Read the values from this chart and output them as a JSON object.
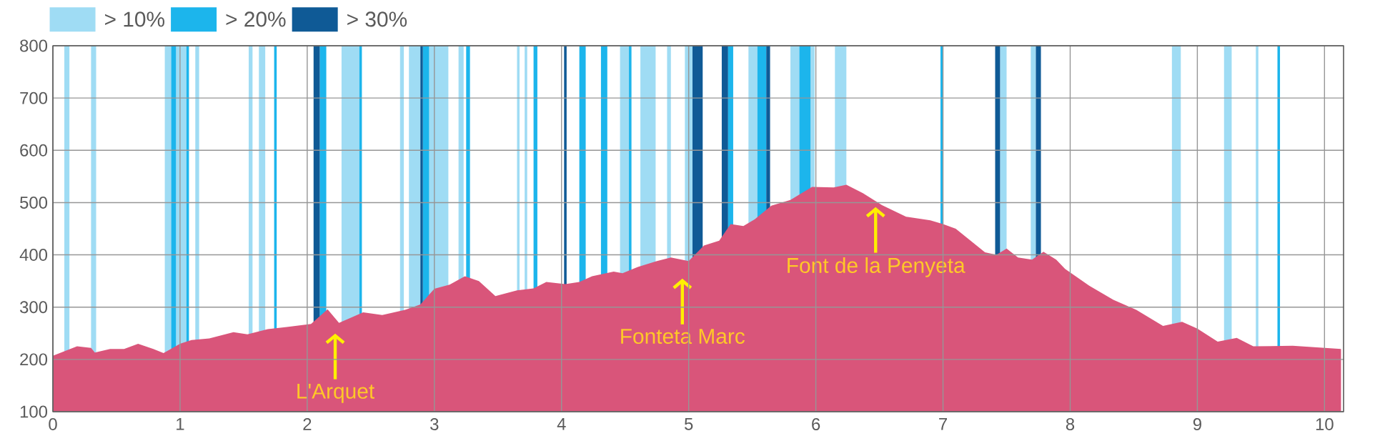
{
  "chart_data": {
    "type": "area",
    "xlim": [
      0,
      10.15
    ],
    "ylim": [
      100,
      800
    ],
    "xticks": [
      0,
      1,
      2,
      3,
      4,
      5,
      6,
      7,
      8,
      9,
      10
    ],
    "yticks": [
      100,
      200,
      300,
      400,
      500,
      600,
      700,
      800
    ],
    "grid": true,
    "legend": "top left",
    "x": [
      0,
      0.19,
      0.3,
      0.33,
      0.45,
      0.56,
      0.67,
      0.79,
      0.87,
      1.0,
      1.09,
      1.23,
      1.42,
      1.53,
      1.69,
      1.84,
      2.03,
      2.16,
      2.25,
      2.44,
      2.59,
      2.77,
      2.89,
      3.0,
      3.12,
      3.24,
      3.35,
      3.48,
      3.65,
      3.78,
      3.88,
      4.03,
      4.14,
      4.24,
      4.41,
      4.48,
      4.6,
      4.75,
      4.86,
      5.0,
      5.12,
      5.24,
      5.33,
      5.43,
      5.52,
      5.65,
      5.8,
      5.97,
      6.14,
      6.24,
      6.37,
      6.52,
      6.71,
      6.9,
      7.0,
      7.1,
      7.33,
      7.42,
      7.5,
      7.59,
      7.7,
      7.79,
      7.89,
      7.96,
      8.15,
      8.34,
      8.52,
      8.73,
      8.88,
      9.0,
      9.16,
      9.31,
      9.44,
      9.75,
      10.13
    ],
    "series": [
      {
        "color": "#d9557a",
        "values": [
          207,
          225,
          222,
          213,
          220,
          220,
          230,
          220,
          212,
          230,
          237,
          240,
          252,
          248,
          258,
          262,
          268,
          296,
          270,
          290,
          285,
          295,
          305,
          335,
          343,
          359,
          350,
          321,
          332,
          336,
          348,
          344,
          348,
          359,
          368,
          365,
          377,
          388,
          395,
          388,
          418,
          427,
          459,
          455,
          468,
          494,
          505,
          530,
          529,
          534,
          518,
          495,
          473,
          466,
          459,
          450,
          405,
          400,
          412,
          395,
          391,
          406,
          391,
          373,
          341,
          314,
          295,
          264,
          272,
          259,
          234,
          241,
          225,
          226,
          220
        ]
      }
    ],
    "bands": [
      {
        "axis": "x",
        "from": 0.09,
        "to": 0.13,
        "color": "#9fdcf4",
        "label": "> 10%"
      },
      {
        "axis": "x",
        "from": 0.3,
        "to": 0.34,
        "color": "#9fdcf4"
      },
      {
        "axis": "x",
        "from": 0.88,
        "to": 0.93,
        "color": "#9fdcf4"
      },
      {
        "axis": "x",
        "from": 0.93,
        "to": 0.97,
        "color": "#1cb5ec",
        "label": "> 20%"
      },
      {
        "axis": "x",
        "from": 0.97,
        "to": 1.05,
        "color": "#9fdcf4"
      },
      {
        "axis": "x",
        "from": 1.05,
        "to": 1.07,
        "color": "#1cb5ec"
      },
      {
        "axis": "x",
        "from": 1.12,
        "to": 1.15,
        "color": "#9fdcf4"
      },
      {
        "axis": "x",
        "from": 1.54,
        "to": 1.57,
        "color": "#9fdcf4"
      },
      {
        "axis": "x",
        "from": 1.62,
        "to": 1.67,
        "color": "#9fdcf4"
      },
      {
        "axis": "x",
        "from": 1.74,
        "to": 1.76,
        "color": "#1cb5ec"
      },
      {
        "axis": "x",
        "from": 2.05,
        "to": 2.1,
        "color": "#0f5a96",
        "label": "> 30%"
      },
      {
        "axis": "x",
        "from": 2.1,
        "to": 2.15,
        "color": "#1cb5ec"
      },
      {
        "axis": "x",
        "from": 2.27,
        "to": 2.41,
        "color": "#9fdcf4"
      },
      {
        "axis": "x",
        "from": 2.41,
        "to": 2.43,
        "color": "#1cb5ec"
      },
      {
        "axis": "x",
        "from": 2.73,
        "to": 2.76,
        "color": "#9fdcf4"
      },
      {
        "axis": "x",
        "from": 2.8,
        "to": 2.89,
        "color": "#9fdcf4"
      },
      {
        "axis": "x",
        "from": 2.89,
        "to": 2.91,
        "color": "#0f5a96"
      },
      {
        "axis": "x",
        "from": 2.91,
        "to": 2.96,
        "color": "#1cb5ec"
      },
      {
        "axis": "x",
        "from": 2.96,
        "to": 3.11,
        "color": "#9fdcf4"
      },
      {
        "axis": "x",
        "from": 3.19,
        "to": 3.23,
        "color": "#9fdcf4"
      },
      {
        "axis": "x",
        "from": 3.25,
        "to": 3.28,
        "color": "#1cb5ec"
      },
      {
        "axis": "x",
        "from": 3.65,
        "to": 3.67,
        "color": "#9fdcf4"
      },
      {
        "axis": "x",
        "from": 3.71,
        "to": 3.73,
        "color": "#9fdcf4"
      },
      {
        "axis": "x",
        "from": 3.78,
        "to": 3.81,
        "color": "#1cb5ec"
      },
      {
        "axis": "x",
        "from": 4.02,
        "to": 4.04,
        "color": "#0f5a96"
      },
      {
        "axis": "x",
        "from": 4.14,
        "to": 4.19,
        "color": "#1cb5ec"
      },
      {
        "axis": "x",
        "from": 4.31,
        "to": 4.36,
        "color": "#1cb5ec"
      },
      {
        "axis": "x",
        "from": 4.46,
        "to": 4.53,
        "color": "#9fdcf4"
      },
      {
        "axis": "x",
        "from": 4.53,
        "to": 4.55,
        "color": "#1cb5ec"
      },
      {
        "axis": "x",
        "from": 4.62,
        "to": 4.74,
        "color": "#9fdcf4"
      },
      {
        "axis": "x",
        "from": 4.83,
        "to": 4.86,
        "color": "#9fdcf4"
      },
      {
        "axis": "x",
        "from": 4.97,
        "to": 5.03,
        "color": "#9fdcf4"
      },
      {
        "axis": "x",
        "from": 5.03,
        "to": 5.11,
        "color": "#0f5a96"
      },
      {
        "axis": "x",
        "from": 5.26,
        "to": 5.31,
        "color": "#0f5a96"
      },
      {
        "axis": "x",
        "from": 5.31,
        "to": 5.35,
        "color": "#1cb5ec"
      },
      {
        "axis": "x",
        "from": 5.47,
        "to": 5.54,
        "color": "#9fdcf4"
      },
      {
        "axis": "x",
        "from": 5.54,
        "to": 5.61,
        "color": "#1cb5ec"
      },
      {
        "axis": "x",
        "from": 5.61,
        "to": 5.64,
        "color": "#0f5a96"
      },
      {
        "axis": "x",
        "from": 5.8,
        "to": 5.87,
        "color": "#9fdcf4"
      },
      {
        "axis": "x",
        "from": 5.87,
        "to": 5.96,
        "color": "#1cb5ec"
      },
      {
        "axis": "x",
        "from": 5.96,
        "to": 5.99,
        "color": "#9fdcf4"
      },
      {
        "axis": "x",
        "from": 6.15,
        "to": 6.24,
        "color": "#9fdcf4"
      },
      {
        "axis": "x",
        "from": 6.98,
        "to": 7.0,
        "color": "#1cb5ec"
      },
      {
        "axis": "x",
        "from": 7.41,
        "to": 7.45,
        "color": "#0f5a96"
      },
      {
        "axis": "x",
        "from": 7.45,
        "to": 7.5,
        "color": "#9fdcf4"
      },
      {
        "axis": "x",
        "from": 7.69,
        "to": 7.73,
        "color": "#9fdcf4"
      },
      {
        "axis": "x",
        "from": 7.73,
        "to": 7.77,
        "color": "#0f5a96"
      },
      {
        "axis": "x",
        "from": 8.8,
        "to": 8.87,
        "color": "#9fdcf4"
      },
      {
        "axis": "x",
        "from": 9.21,
        "to": 9.27,
        "color": "#9fdcf4"
      },
      {
        "axis": "x",
        "from": 9.46,
        "to": 9.48,
        "color": "#9fdcf4"
      },
      {
        "axis": "x",
        "from": 9.63,
        "to": 9.65,
        "color": "#1cb5ec"
      }
    ],
    "annotations": [
      {
        "text": "L'Arquet",
        "x": 2.22,
        "y": 255
      },
      {
        "text": "Fonteta Marc",
        "x": 4.95,
        "y": 360
      },
      {
        "text": "Font de la Penyeta",
        "x": 6.47,
        "y": 497
      }
    ]
  }
}
